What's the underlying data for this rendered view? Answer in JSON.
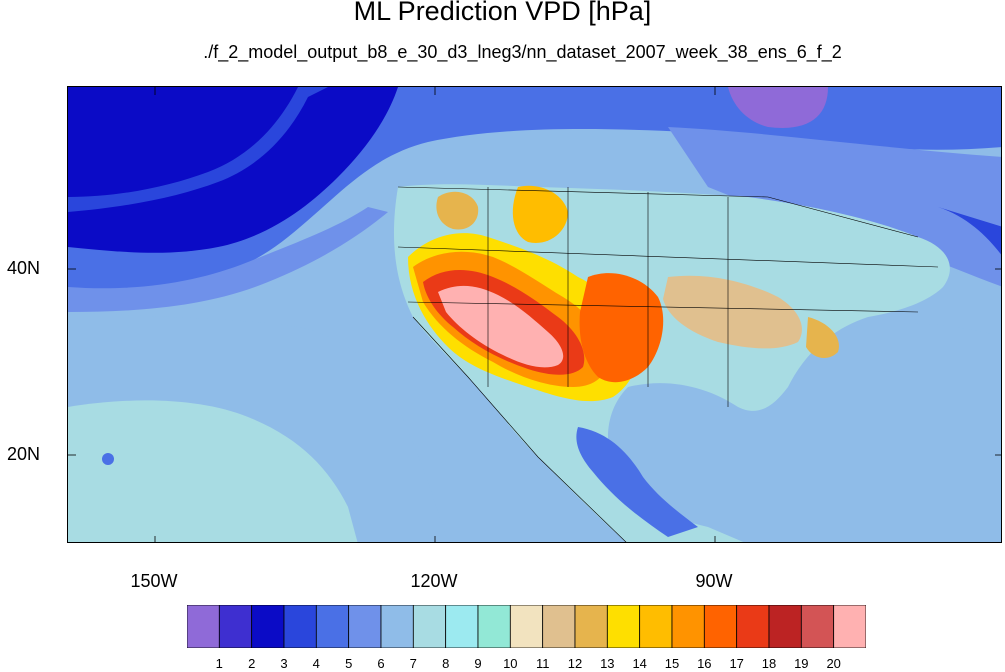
{
  "title": "ML Prediction VPD [hPa]",
  "subtitle": "./f_2_model_output_b8_e_30_d3_lneg3/nn_dataset_2007_week_38_ens_6_f_2",
  "lon_labels": [
    "150W",
    "120W",
    "90W"
  ],
  "lat_labels": [
    "40N",
    "20N"
  ],
  "colorbar": {
    "labels": [
      "1",
      "2",
      "3",
      "4",
      "5",
      "6",
      "7",
      "8",
      "9",
      "10",
      "11",
      "12",
      "13",
      "14",
      "15",
      "16",
      "17",
      "18",
      "19",
      "20"
    ],
    "colors": [
      "#8f6ad8",
      "#3e2fd0",
      "#0b0bc6",
      "#2a46dc",
      "#4a70e6",
      "#6f91ea",
      "#8fbce8",
      "#a8dce3",
      "#9ceaf0",
      "#92e8d6",
      "#f2e3bf",
      "#e0c08f",
      "#e6b44d",
      "#fedf00",
      "#ffbd00",
      "#ff9300",
      "#ff6300",
      "#ea3a17",
      "#bc2323",
      "#d35455",
      "#ffb1b1"
    ]
  },
  "map": {
    "ocean_colors": {
      "deep": "#0b0bc6",
      "mid": "#2a46dc",
      "light": "#4a70e6",
      "pale": "#6f91ea",
      "paler": "#8fbce8",
      "aqua": "#a8dce3"
    }
  }
}
